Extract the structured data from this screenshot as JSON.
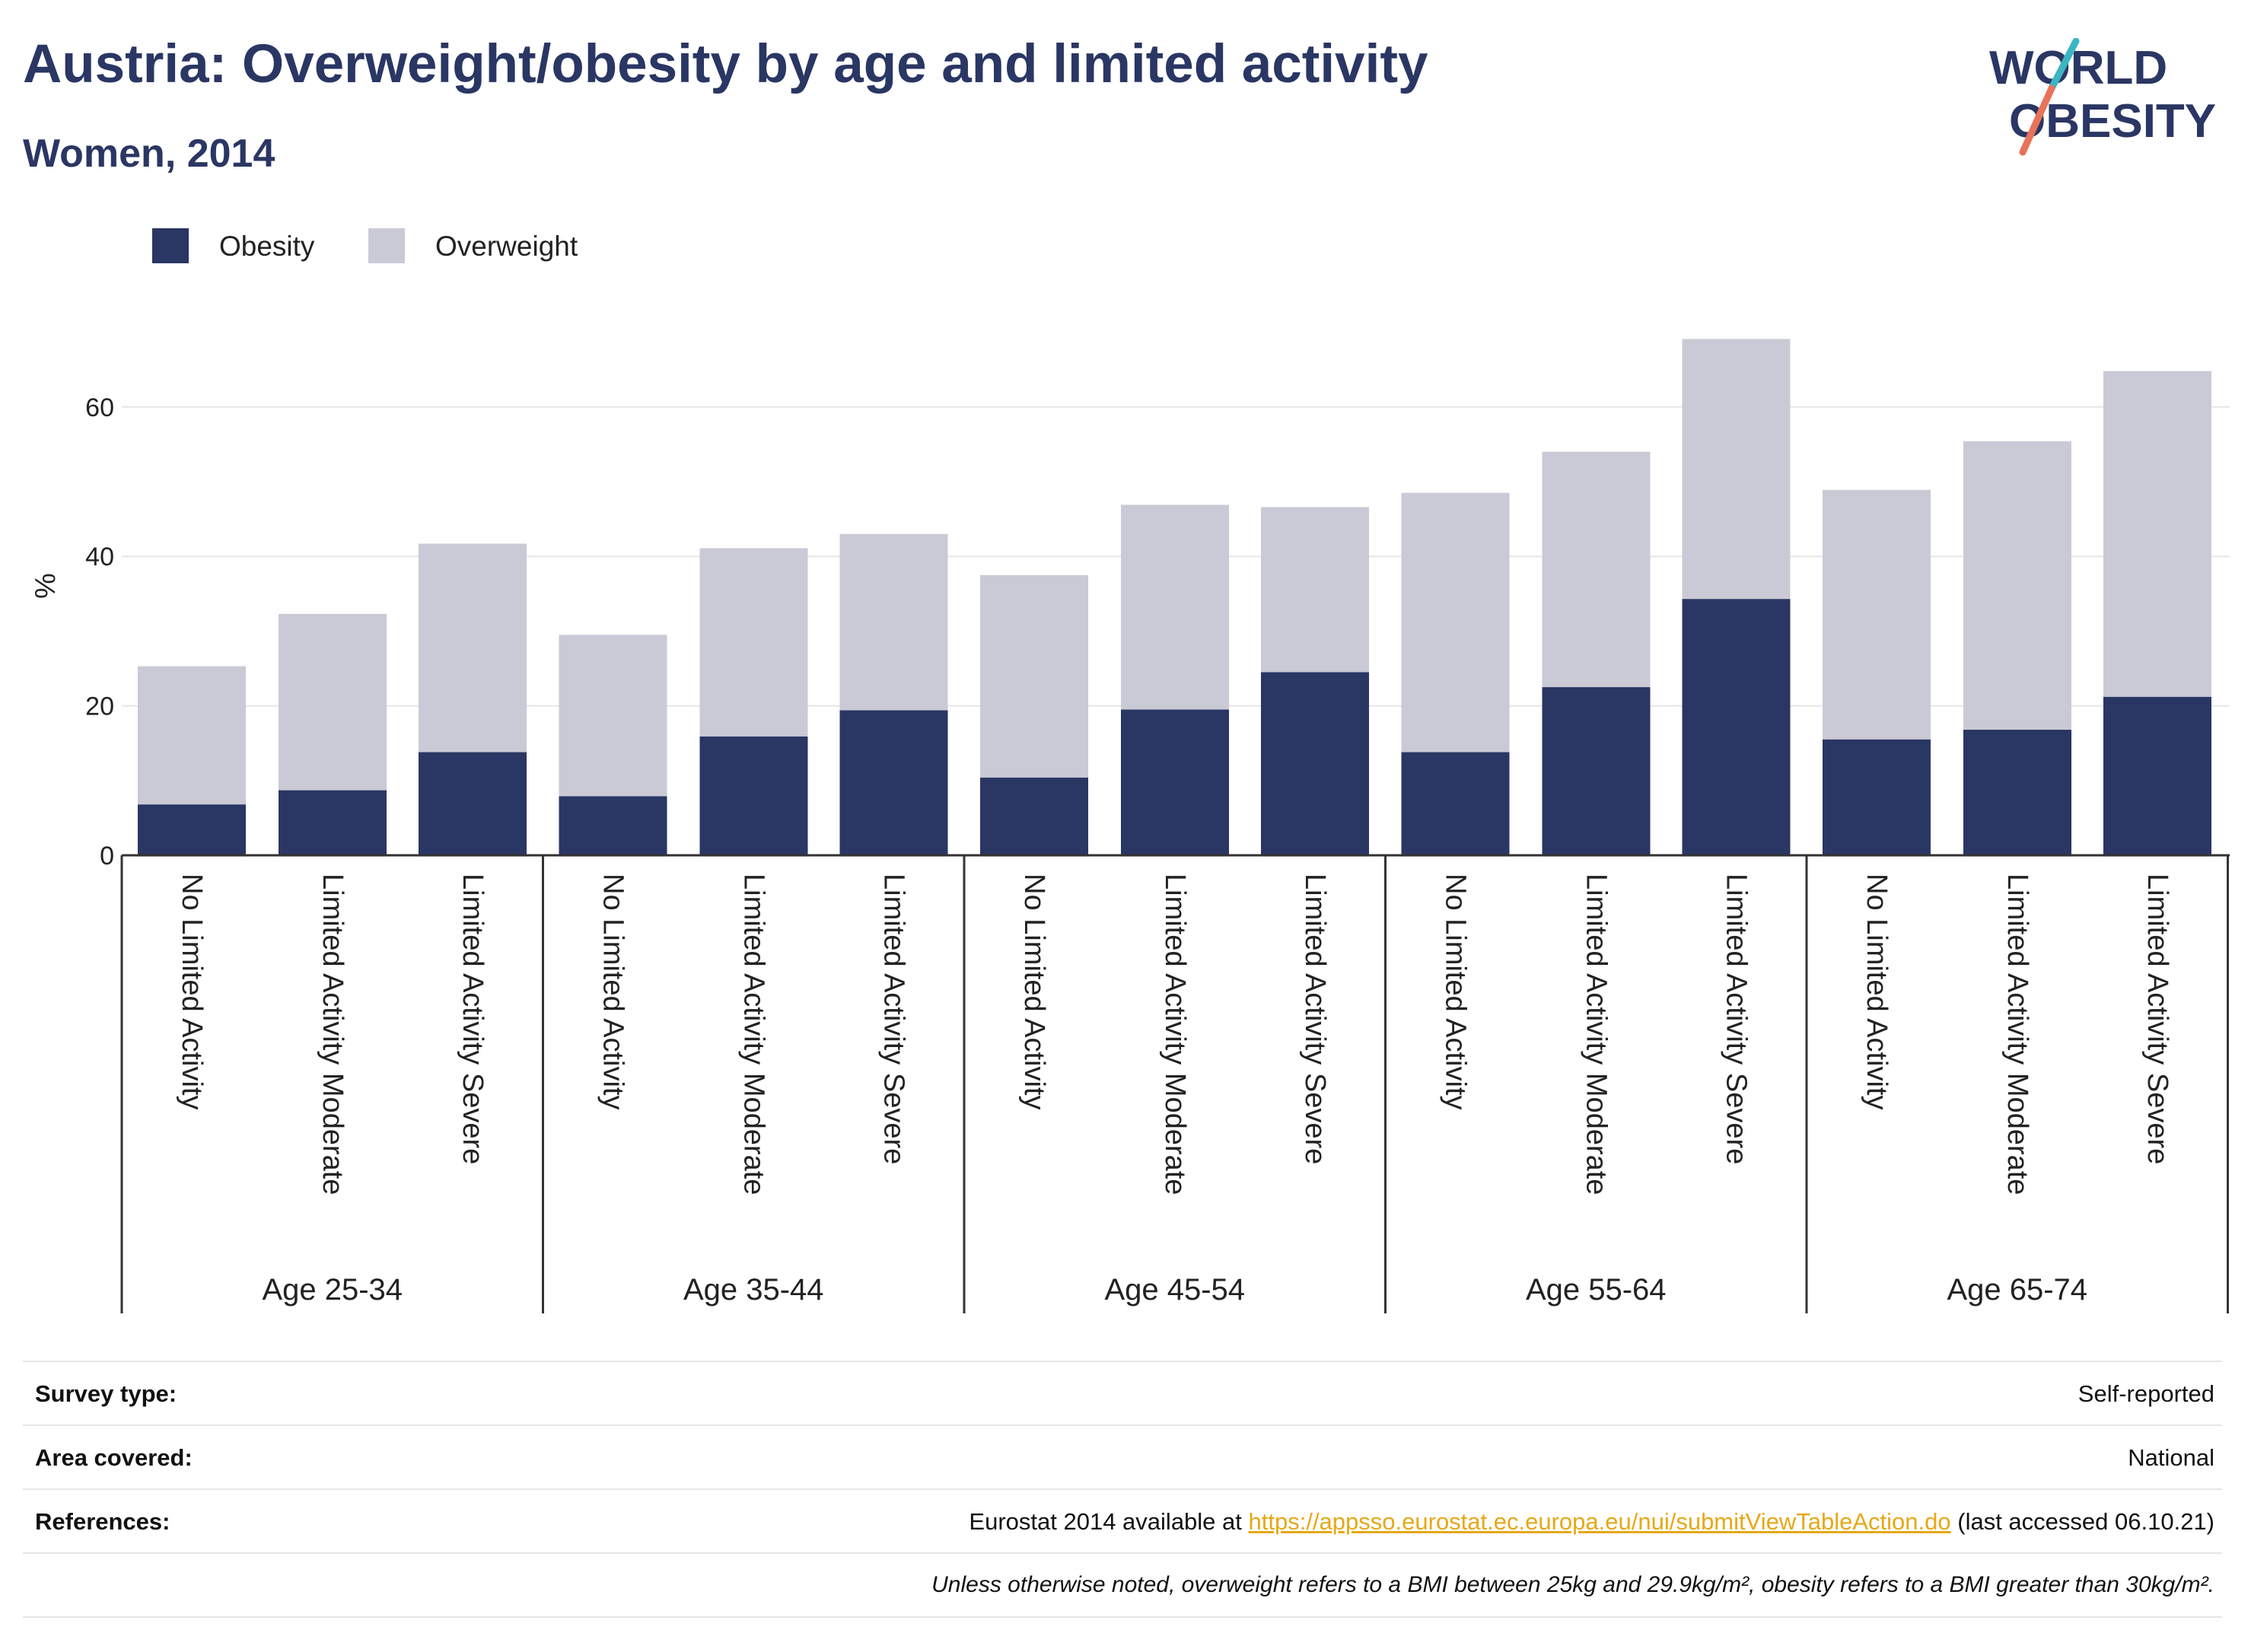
{
  "header": {
    "title": "Austria: Overweight/obesity by age and limited activity",
    "subtitle": "Women, 2014"
  },
  "logo": {
    "line1": "WORLD",
    "line2": "OBESITY"
  },
  "colors": {
    "obesity": "#2a3663",
    "overweight": "#c9cad6",
    "grid": "#e5e5e5",
    "axis": "#333333",
    "link": "#e6a817",
    "logo_teal": "#3bb5c4",
    "logo_coral": "#e8735a"
  },
  "chart_data": {
    "type": "bar",
    "stacked": true,
    "ylabel": "%",
    "ylim": [
      0,
      70
    ],
    "yticks": [
      0,
      20,
      40,
      60
    ],
    "legend": {
      "position": "top-left",
      "entries": [
        "Obesity",
        "Overweight"
      ]
    },
    "groups": [
      "Age 25-34",
      "Age 35-44",
      "Age 45-54",
      "Age 55-64",
      "Age 65-74"
    ],
    "categories": [
      "No Limited Activity",
      "Limited Activity Moderate",
      "Limited Activity Severe"
    ],
    "series": [
      {
        "name": "Obesity",
        "values": [
          [
            6.8,
            8.7,
            13.8
          ],
          [
            7.9,
            15.9,
            19.4
          ],
          [
            10.4,
            19.5,
            24.5
          ],
          [
            13.8,
            22.5,
            34.3
          ],
          [
            15.5,
            16.8,
            21.2
          ]
        ]
      },
      {
        "name": "Overweight",
        "values": [
          [
            18.5,
            23.6,
            27.9
          ],
          [
            21.6,
            25.2,
            23.6
          ],
          [
            27.1,
            27.4,
            22.1
          ],
          [
            34.7,
            31.5,
            34.8
          ],
          [
            33.4,
            38.6,
            43.6
          ]
        ]
      }
    ]
  },
  "footer": {
    "survey_label": "Survey type:",
    "survey_value": "Self-reported",
    "area_label": "Area covered:",
    "area_value": "National",
    "refs_label": "References:",
    "refs_prefix": "Eurostat 2014 available at ",
    "refs_link": "https://appsso.eurostat.ec.europa.eu/nui/submitViewTableAction.do",
    "refs_suffix": " (last accessed 06.10.21)",
    "note": "Unless otherwise noted, overweight refers to a BMI between 25kg and 29.9kg/m², obesity refers to a BMI greater than 30kg/m²."
  }
}
